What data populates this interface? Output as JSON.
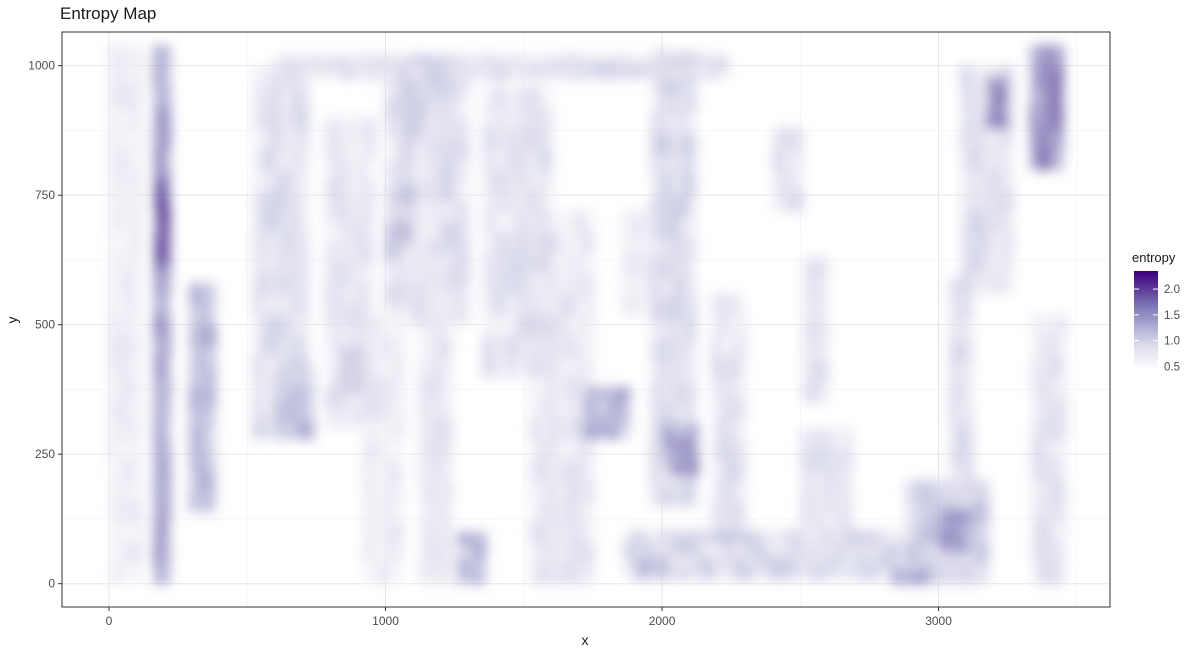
{
  "chart_data": {
    "type": "heatmap",
    "title": "Entropy Map",
    "xlabel": "x",
    "ylabel": "y",
    "xlim": [
      -170,
      3620
    ],
    "ylim": [
      -45,
      1065
    ],
    "x_ticks": [
      0,
      1000,
      2000,
      3000
    ],
    "y_ticks": [
      0,
      250,
      500,
      750,
      1000
    ],
    "x_minor": [
      500,
      1500,
      2500,
      3500
    ],
    "y_minor": [
      125,
      375,
      625,
      875
    ],
    "grid": true,
    "legend": {
      "title": "entropy",
      "placement": "right",
      "range": [
        0.45,
        2.35
      ],
      "ticks": [
        0.5,
        1.0,
        1.5,
        2.0
      ],
      "tick_labels": [
        "0.5",
        "1.0",
        "1.5",
        "2.0"
      ],
      "colors": [
        "#fcfbfd",
        "#efedf5",
        "#dadaeb",
        "#bcbddc",
        "#9e9ac8",
        "#807dba",
        "#6a51a3",
        "#54278f",
        "#3f007d"
      ]
    },
    "features": [
      {
        "shape": "v",
        "x": [
          160,
          220
        ],
        "y": [
          0,
          1020
        ],
        "value": 1.55
      },
      {
        "shape": "v",
        "x": [
          170,
          210
        ],
        "y": [
          620,
          760
        ],
        "value": 2.1
      },
      {
        "shape": "v",
        "x": [
          290,
          370
        ],
        "y": [
          140,
          560
        ],
        "value": 1.35
      },
      {
        "shape": "v",
        "x": [
          0,
          120
        ],
        "y": [
          0,
          1020
        ],
        "value": 0.75
      },
      {
        "shape": "v",
        "x": [
          520,
          720
        ],
        "y": [
          280,
          1000
        ],
        "value": 0.95
      },
      {
        "shape": "b",
        "x": [
          600,
          740
        ],
        "y": [
          280,
          420
        ],
        "value": 1.3
      },
      {
        "shape": "b",
        "x": [
          820,
          940
        ],
        "y": [
          370,
          460
        ],
        "value": 1.75
      },
      {
        "shape": "v",
        "x": [
          780,
          960
        ],
        "y": [
          300,
          900
        ],
        "value": 0.85
      },
      {
        "shape": "b",
        "x": [
          1000,
          1110
        ],
        "y": [
          640,
          760
        ],
        "value": 1.6
      },
      {
        "shape": "v",
        "x": [
          1070,
          1140
        ],
        "y": [
          860,
          1000
        ],
        "value": 1.4
      },
      {
        "shape": "v",
        "x": [
          1000,
          1300
        ],
        "y": [
          500,
          1000
        ],
        "value": 0.95
      },
      {
        "shape": "v",
        "x": [
          920,
          1060
        ],
        "y": [
          0,
          500
        ],
        "value": 0.8
      },
      {
        "shape": "v",
        "x": [
          1120,
          1240
        ],
        "y": [
          0,
          620
        ],
        "value": 0.85
      },
      {
        "shape": "b",
        "x": [
          1260,
          1360
        ],
        "y": [
          0,
          100
        ],
        "value": 1.35
      },
      {
        "shape": "v",
        "x": [
          1350,
          1600
        ],
        "y": [
          400,
          950
        ],
        "value": 0.9
      },
      {
        "shape": "v",
        "x": [
          1520,
          1720
        ],
        "y": [
          0,
          700
        ],
        "value": 0.85
      },
      {
        "shape": "b",
        "x": [
          1720,
          1880
        ],
        "y": [
          280,
          380
        ],
        "value": 1.4
      },
      {
        "shape": "v",
        "x": [
          1850,
          1950
        ],
        "y": [
          520,
          720
        ],
        "value": 0.75
      },
      {
        "shape": "v",
        "x": [
          1960,
          2120
        ],
        "y": [
          150,
          1000
        ],
        "value": 1.0
      },
      {
        "shape": "b",
        "x": [
          2010,
          2130
        ],
        "y": [
          210,
          310
        ],
        "value": 1.6
      },
      {
        "shape": "v",
        "x": [
          2180,
          2300
        ],
        "y": [
          80,
          560
        ],
        "value": 0.9
      },
      {
        "shape": "h",
        "x": [
          600,
          2240
        ],
        "y": [
          975,
          1010
        ],
        "value": 0.95
      },
      {
        "shape": "v",
        "x": [
          2400,
          2510
        ],
        "y": [
          720,
          880
        ],
        "value": 0.9
      },
      {
        "shape": "v",
        "x": [
          2510,
          2600
        ],
        "y": [
          350,
          620
        ],
        "value": 0.9
      },
      {
        "shape": "v",
        "x": [
          2500,
          2660
        ],
        "y": [
          100,
          280
        ],
        "value": 0.85
      },
      {
        "shape": "h",
        "x": [
          1860,
          3000
        ],
        "y": [
          10,
          80
        ],
        "value": 1.0
      },
      {
        "shape": "b",
        "x": [
          1900,
          2020
        ],
        "y": [
          10,
          50
        ],
        "value": 1.35
      },
      {
        "shape": "v",
        "x": [
          2880,
          3180
        ],
        "y": [
          0,
          200
        ],
        "value": 1.1
      },
      {
        "shape": "b",
        "x": [
          3010,
          3110
        ],
        "y": [
          60,
          140
        ],
        "value": 1.55
      },
      {
        "shape": "v",
        "x": [
          3040,
          3110
        ],
        "y": [
          150,
          560
        ],
        "value": 0.95
      },
      {
        "shape": "v",
        "x": [
          3080,
          3240
        ],
        "y": [
          560,
          1000
        ],
        "value": 0.95
      },
      {
        "shape": "b",
        "x": [
          3170,
          3240
        ],
        "y": [
          880,
          980
        ],
        "value": 1.8
      },
      {
        "shape": "v",
        "x": [
          3330,
          3450
        ],
        "y": [
          800,
          1020
        ],
        "value": 1.8
      },
      {
        "shape": "v",
        "x": [
          3340,
          3460
        ],
        "y": [
          0,
          520
        ],
        "value": 0.9
      },
      {
        "shape": "b",
        "x": [
          2830,
          2960
        ],
        "y": [
          0,
          30
        ],
        "value": 1.45
      }
    ]
  }
}
